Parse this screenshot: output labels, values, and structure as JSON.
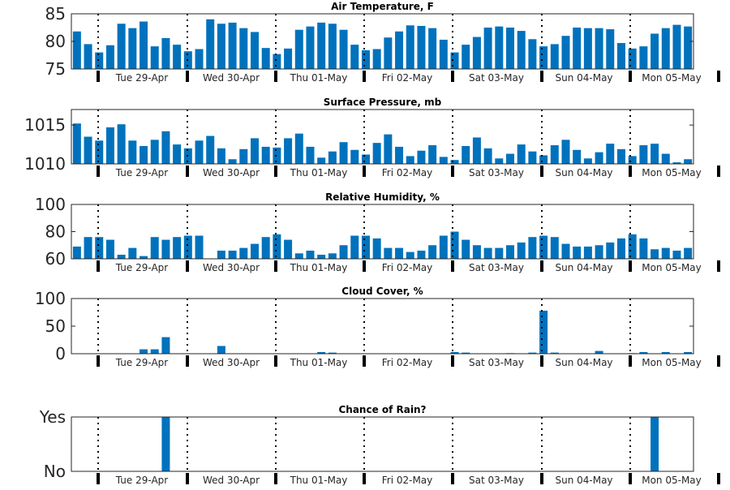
{
  "bar_color": "#0072bd",
  "day_labels": [
    "Tue 29-Apr",
    "Wed 30-Apr",
    "Thu 01-May",
    "Fri 02-May",
    "Sat 03-May",
    "Sun 04-May",
    "Mon 05-May"
  ],
  "chart_data": [
    {
      "type": "bar",
      "title": "Air Temperature, F",
      "ylim": [
        75,
        85
      ],
      "yticks": [
        "75",
        "80",
        "85"
      ],
      "values": [
        81.8,
        79.5,
        78.0,
        79.3,
        83.2,
        82.4,
        83.6,
        79.1,
        80.6,
        79.4,
        78.2,
        78.6,
        84.0,
        83.2,
        83.4,
        82.4,
        81.7,
        78.8,
        77.7,
        78.7,
        82.1,
        82.7,
        83.4,
        83.2,
        82.1,
        79.4,
        78.4,
        78.6,
        80.7,
        81.8,
        82.9,
        82.8,
        82.4,
        80.3,
        78.0,
        79.4,
        80.8,
        82.5,
        82.7,
        82.5,
        81.9,
        80.4,
        79.1,
        79.5,
        81.0,
        82.5,
        82.4,
        82.4,
        82.2,
        79.7,
        78.7,
        79.1,
        81.4,
        82.4,
        83.0,
        82.7
      ]
    },
    {
      "type": "bar",
      "title": "Surface Pressure, mb",
      "ylim": [
        1010,
        1017
      ],
      "yticks": [
        "1010",
        "1015"
      ],
      "values": [
        1015.2,
        1013.5,
        1013.0,
        1014.7,
        1015.1,
        1013.0,
        1012.3,
        1013.1,
        1014.2,
        1012.5,
        1012.0,
        1013.0,
        1013.6,
        1012.0,
        1010.6,
        1011.9,
        1013.3,
        1012.2,
        1012.1,
        1013.3,
        1013.9,
        1012.2,
        1010.8,
        1011.6,
        1012.8,
        1011.8,
        1011.2,
        1012.7,
        1013.8,
        1012.2,
        1011.0,
        1011.7,
        1012.4,
        1010.9,
        1010.5,
        1012.3,
        1013.4,
        1012.0,
        1010.7,
        1011.3,
        1012.5,
        1011.6,
        1011.1,
        1012.4,
        1013.1,
        1011.8,
        1010.7,
        1011.5,
        1012.6,
        1011.9,
        1011.0,
        1012.4,
        1012.6,
        1011.3,
        1010.2,
        1010.6
      ]
    },
    {
      "type": "bar",
      "title": "Relative Humidity, %",
      "ylim": [
        60,
        100
      ],
      "yticks": [
        "60",
        "80",
        "100"
      ],
      "values": [
        69,
        76,
        76,
        74,
        63,
        68,
        62,
        76,
        74,
        76,
        77,
        77,
        60,
        66,
        66,
        68,
        71,
        76,
        78,
        74,
        64,
        66,
        63,
        64,
        70,
        77,
        77,
        75,
        68,
        68,
        65,
        66,
        70,
        77,
        80,
        74,
        70,
        68,
        68,
        70,
        72,
        76,
        77,
        76,
        71,
        69,
        69,
        70,
        72,
        75,
        78,
        75,
        67,
        68,
        66,
        68
      ]
    },
    {
      "type": "bar",
      "title": "Cloud Cover, %",
      "ylim": [
        0,
        100
      ],
      "yticks": [
        "0",
        "50",
        "100"
      ],
      "values": [
        0,
        0,
        0,
        0,
        0,
        0,
        8,
        8,
        30,
        0,
        0,
        0,
        0,
        14,
        0,
        0,
        0,
        0,
        0,
        0,
        0,
        0,
        3,
        2,
        0,
        0,
        0,
        0,
        0,
        0,
        0,
        0,
        0,
        0,
        3,
        2,
        0,
        0,
        0,
        1,
        0,
        2,
        78,
        2,
        0,
        0,
        0,
        5,
        0,
        0,
        1,
        3,
        0,
        3,
        0,
        3
      ]
    },
    {
      "type": "bar",
      "title": "Chance of Rain?",
      "ylim": [
        0,
        1
      ],
      "yticks": [
        "No",
        "Yes"
      ],
      "values": [
        0,
        0,
        0,
        0,
        0,
        0,
        0,
        0,
        1,
        0,
        0,
        0,
        0,
        0,
        0,
        0,
        0,
        0,
        0,
        0,
        0,
        0,
        0,
        0,
        0,
        0,
        0,
        0,
        0,
        0,
        0,
        0,
        0,
        0,
        0,
        0,
        0,
        0,
        0,
        0,
        0,
        0,
        0,
        0,
        0,
        0,
        0,
        0,
        0,
        0,
        0,
        0,
        1,
        0,
        0,
        0
      ]
    }
  ]
}
